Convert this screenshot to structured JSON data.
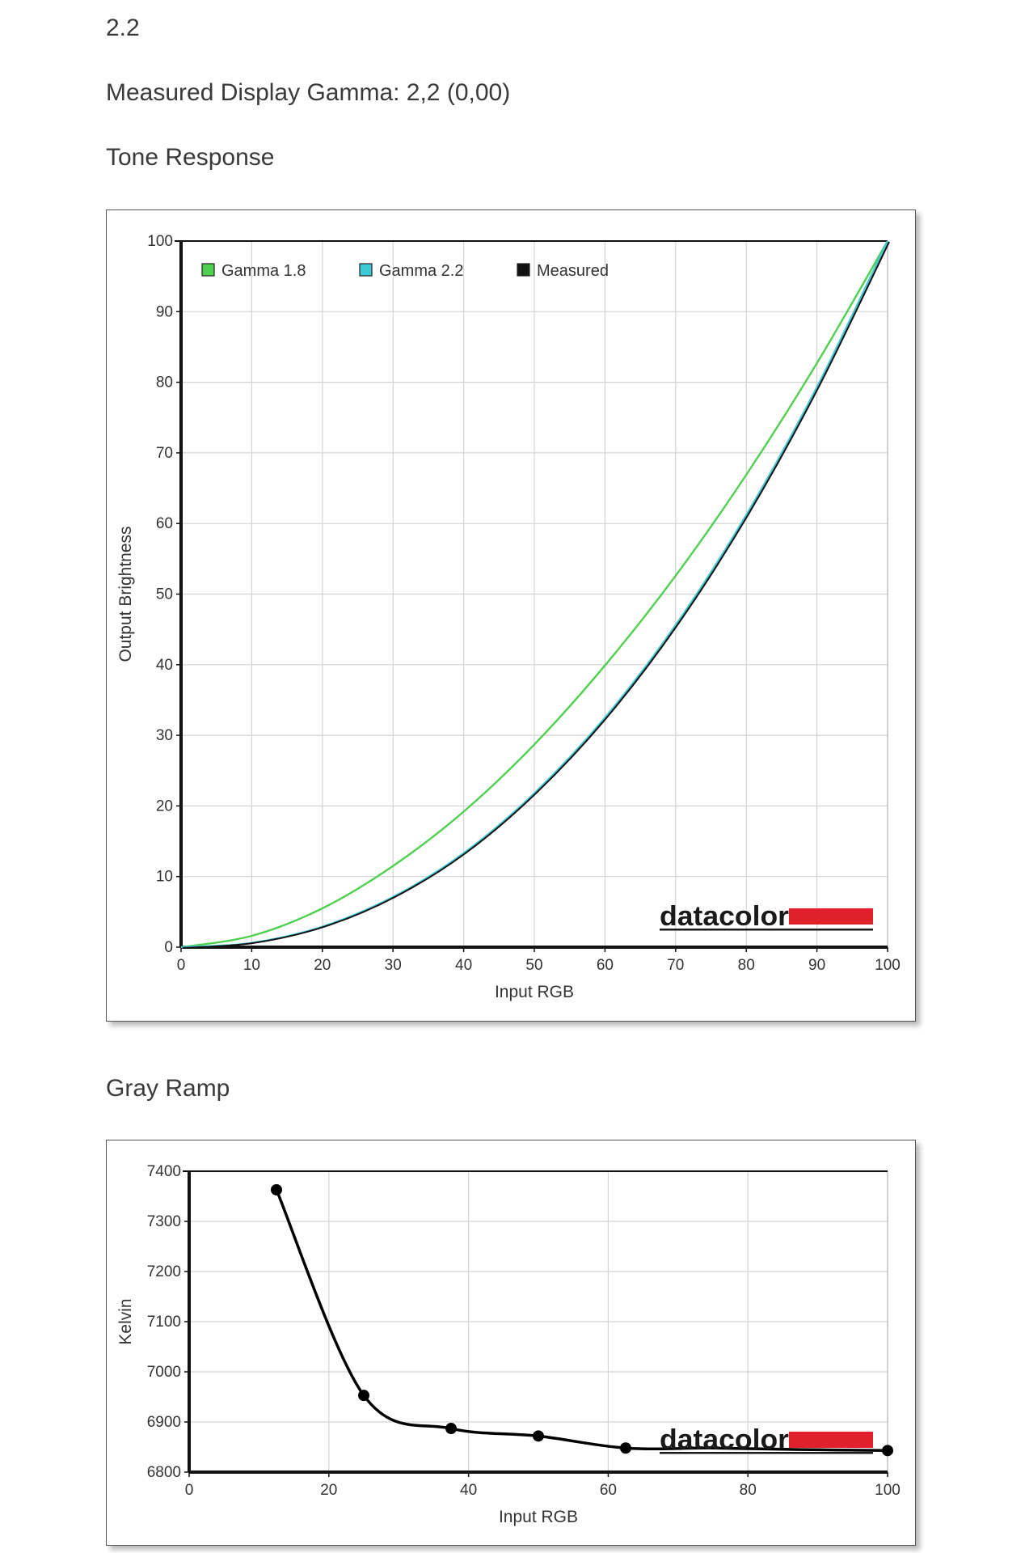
{
  "page": {
    "gamma_heading": "2.2",
    "measured_line": "Measured Display Gamma: 2,2 (0,00)",
    "tone_heading": "Tone Response",
    "gray_heading": "Gray Ramp"
  },
  "brand": {
    "logo_text": "datacolor",
    "bar_color": "#e0202a"
  },
  "chart_data": [
    {
      "type": "line",
      "title": "",
      "xlabel": "Input RGB",
      "ylabel": "Output Brightness",
      "xlim": [
        0,
        100
      ],
      "ylim": [
        0,
        100
      ],
      "x_ticks": [
        "0",
        "10",
        "20",
        "30",
        "40",
        "50",
        "60",
        "70",
        "80",
        "90",
        "100"
      ],
      "y_ticks": [
        "0",
        "10",
        "20",
        "30",
        "40",
        "50",
        "60",
        "70",
        "80",
        "90",
        "100"
      ],
      "grid": true,
      "legend_position": "top-left",
      "series": [
        {
          "name": "Gamma 1.8",
          "color": "#50d050",
          "x": [
            0,
            10,
            20,
            30,
            40,
            50,
            60,
            70,
            80,
            90,
            100
          ],
          "y": [
            0,
            1.6,
            5.5,
            11.5,
            19.2,
            28.7,
            39.9,
            52.6,
            66.9,
            82.7,
            100
          ]
        },
        {
          "name": "Gamma 2.2",
          "color": "#3fc9d6",
          "x": [
            0,
            10,
            20,
            30,
            40,
            50,
            60,
            70,
            80,
            90,
            100
          ],
          "y": [
            0,
            0.6,
            2.9,
            7.1,
            13.3,
            21.8,
            32.5,
            45.6,
            61.2,
            79.3,
            100
          ]
        },
        {
          "name": "Measured",
          "color": "#111111",
          "x": [
            0,
            10,
            20,
            30,
            40,
            50,
            60,
            70,
            80,
            90,
            100
          ],
          "y": [
            0,
            0.7,
            3.0,
            7.2,
            13.4,
            21.9,
            32.6,
            45.7,
            61.3,
            79.4,
            100
          ]
        }
      ]
    },
    {
      "type": "line",
      "title": "",
      "xlabel": "Input RGB",
      "ylabel": "Kelvin",
      "xlim": [
        0,
        100
      ],
      "ylim": [
        6800,
        7400
      ],
      "x_ticks": [
        "0",
        "20",
        "40",
        "60",
        "80",
        "100"
      ],
      "y_ticks": [
        "6800",
        "6900",
        "7000",
        "7100",
        "7200",
        "7300",
        "7400"
      ],
      "grid": true,
      "series": [
        {
          "color": "#000000",
          "x": [
            12.5,
            25,
            37.5,
            50,
            62.5,
            75,
            87.5,
            100
          ],
          "y": [
            7363,
            6953,
            6887,
            6872,
            6848,
            6848,
            6845,
            6843
          ]
        }
      ]
    }
  ]
}
